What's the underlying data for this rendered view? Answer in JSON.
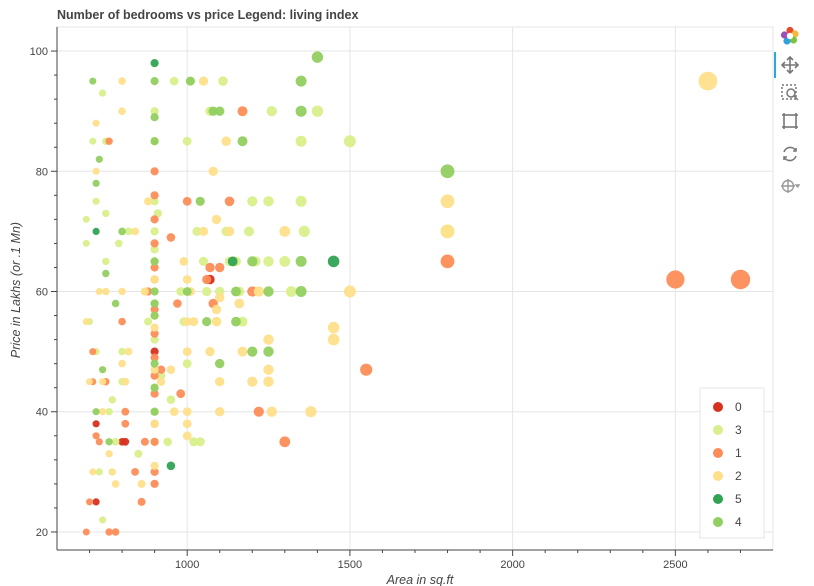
{
  "chart_data": {
    "type": "scatter",
    "title": "Number of bedrooms vs price  Legend: living index",
    "xlabel": "Area in sq.ft",
    "ylabel": "Price in Lakhs (or .1 Mn)",
    "xlim": [
      600,
      2800
    ],
    "ylim": [
      17,
      104
    ],
    "xticks": [
      1000,
      1500,
      2000,
      2500
    ],
    "yticks": [
      20,
      40,
      60,
      80,
      100
    ],
    "grid": true,
    "legend_placement": "bottom-right",
    "series": [
      {
        "name": "0",
        "color": "#d7301f",
        "points": [
          [
            720,
            25
          ],
          [
            800,
            35
          ],
          [
            810,
            35
          ],
          [
            900,
            50
          ],
          [
            1070,
            62
          ],
          [
            720,
            38
          ]
        ]
      },
      {
        "name": "3",
        "color": "#d9ef8b",
        "points": [
          [
            690,
            72
          ],
          [
            690,
            68
          ],
          [
            700,
            55
          ],
          [
            710,
            85
          ],
          [
            720,
            75
          ],
          [
            720,
            50
          ],
          [
            730,
            30
          ],
          [
            740,
            22
          ],
          [
            740,
            93
          ],
          [
            750,
            85
          ],
          [
            750,
            73
          ],
          [
            750,
            65
          ],
          [
            760,
            40
          ],
          [
            770,
            42
          ],
          [
            780,
            35
          ],
          [
            790,
            68
          ],
          [
            800,
            50
          ],
          [
            800,
            45
          ],
          [
            820,
            70
          ],
          [
            850,
            33
          ],
          [
            870,
            60
          ],
          [
            880,
            55
          ],
          [
            900,
            75
          ],
          [
            900,
            70
          ],
          [
            900,
            67
          ],
          [
            900,
            58
          ],
          [
            900,
            52
          ],
          [
            900,
            40
          ],
          [
            900,
            35
          ],
          [
            900,
            90
          ],
          [
            910,
            73
          ],
          [
            920,
            46
          ],
          [
            940,
            35
          ],
          [
            950,
            42
          ],
          [
            960,
            95
          ],
          [
            980,
            60
          ],
          [
            990,
            55
          ],
          [
            1000,
            48
          ],
          [
            1000,
            85
          ],
          [
            1010,
            95
          ],
          [
            1020,
            35
          ],
          [
            1030,
            70
          ],
          [
            1040,
            35
          ],
          [
            1050,
            65
          ],
          [
            1060,
            60
          ],
          [
            1070,
            90
          ],
          [
            1090,
            55
          ],
          [
            1100,
            60
          ],
          [
            1110,
            95
          ],
          [
            1120,
            70
          ],
          [
            1130,
            65
          ],
          [
            1150,
            65
          ],
          [
            1160,
            60
          ],
          [
            1170,
            55
          ],
          [
            1190,
            70
          ],
          [
            1200,
            75
          ],
          [
            1210,
            65
          ],
          [
            1220,
            60
          ],
          [
            1250,
            75
          ],
          [
            1250,
            65
          ],
          [
            1260,
            90
          ],
          [
            1300,
            65
          ],
          [
            1320,
            60
          ],
          [
            1350,
            85
          ],
          [
            1350,
            75
          ],
          [
            1360,
            70
          ],
          [
            1400,
            90
          ],
          [
            1500,
            85
          ],
          [
            1800,
            70
          ]
        ]
      },
      {
        "name": "1",
        "color": "#fc8d59",
        "points": [
          [
            690,
            20
          ],
          [
            700,
            25
          ],
          [
            710,
            50
          ],
          [
            710,
            45
          ],
          [
            720,
            36
          ],
          [
            730,
            35
          ],
          [
            750,
            45
          ],
          [
            760,
            85
          ],
          [
            760,
            20
          ],
          [
            780,
            20
          ],
          [
            800,
            55
          ],
          [
            810,
            38
          ],
          [
            810,
            40
          ],
          [
            840,
            30
          ],
          [
            860,
            25
          ],
          [
            870,
            35
          ],
          [
            880,
            60
          ],
          [
            900,
            80
          ],
          [
            900,
            76
          ],
          [
            900,
            72
          ],
          [
            900,
            68
          ],
          [
            900,
            64
          ],
          [
            900,
            62
          ],
          [
            900,
            57
          ],
          [
            900,
            53
          ],
          [
            900,
            49
          ],
          [
            900,
            46
          ],
          [
            900,
            43
          ],
          [
            900,
            38
          ],
          [
            900,
            35
          ],
          [
            900,
            28
          ],
          [
            920,
            47
          ],
          [
            950,
            69
          ],
          [
            970,
            58
          ],
          [
            980,
            43
          ],
          [
            1000,
            75
          ],
          [
            1060,
            62
          ],
          [
            1070,
            64
          ],
          [
            1080,
            58
          ],
          [
            1100,
            64
          ],
          [
            1130,
            75
          ],
          [
            1170,
            90
          ],
          [
            1200,
            60
          ],
          [
            1220,
            40
          ],
          [
            1300,
            35
          ],
          [
            1550,
            47
          ],
          [
            1800,
            65
          ],
          [
            2500,
            62
          ],
          [
            2700,
            62
          ],
          [
            900,
            30
          ]
        ]
      },
      {
        "name": "2",
        "color": "#fee08b",
        "points": [
          [
            690,
            55
          ],
          [
            700,
            45
          ],
          [
            710,
            30
          ],
          [
            720,
            88
          ],
          [
            720,
            80
          ],
          [
            730,
            60
          ],
          [
            740,
            40
          ],
          [
            740,
            45
          ],
          [
            750,
            60
          ],
          [
            760,
            33
          ],
          [
            770,
            30
          ],
          [
            780,
            28
          ],
          [
            800,
            95
          ],
          [
            800,
            90
          ],
          [
            800,
            60
          ],
          [
            800,
            48
          ],
          [
            810,
            45
          ],
          [
            820,
            50
          ],
          [
            840,
            70
          ],
          [
            860,
            28
          ],
          [
            870,
            60
          ],
          [
            880,
            75
          ],
          [
            900,
            85
          ],
          [
            900,
            65
          ],
          [
            900,
            62
          ],
          [
            900,
            56
          ],
          [
            900,
            54
          ],
          [
            900,
            47
          ],
          [
            900,
            44
          ],
          [
            900,
            38
          ],
          [
            900,
            31
          ],
          [
            920,
            45
          ],
          [
            950,
            47
          ],
          [
            960,
            40
          ],
          [
            990,
            65
          ],
          [
            1000,
            62
          ],
          [
            1000,
            40
          ],
          [
            1000,
            38
          ],
          [
            1000,
            36
          ],
          [
            1000,
            55
          ],
          [
            1010,
            60
          ],
          [
            1020,
            55
          ],
          [
            1050,
            70
          ],
          [
            1070,
            50
          ],
          [
            1080,
            80
          ],
          [
            1090,
            72
          ],
          [
            1090,
            57
          ],
          [
            1090,
            55
          ],
          [
            1100,
            59
          ],
          [
            1100,
            45
          ],
          [
            1100,
            40
          ],
          [
            1120,
            85
          ],
          [
            1130,
            70
          ],
          [
            1140,
            65
          ],
          [
            1150,
            60
          ],
          [
            1160,
            58
          ],
          [
            1170,
            50
          ],
          [
            1200,
            45
          ],
          [
            1220,
            60
          ],
          [
            1250,
            52
          ],
          [
            1250,
            47
          ],
          [
            1250,
            45
          ],
          [
            1260,
            40
          ],
          [
            1300,
            70
          ],
          [
            1380,
            40
          ],
          [
            1450,
            54
          ],
          [
            1450,
            52
          ],
          [
            1500,
            60
          ],
          [
            1800,
            75
          ],
          [
            1800,
            70
          ],
          [
            2600,
            95
          ],
          [
            1000,
            50
          ],
          [
            1050,
            95
          ]
        ]
      },
      {
        "name": "5",
        "color": "#31a354",
        "points": [
          [
            720,
            70
          ],
          [
            900,
            98
          ],
          [
            950,
            31
          ],
          [
            1140,
            65
          ],
          [
            1450,
            65
          ]
        ]
      },
      {
        "name": "4",
        "color": "#91cf60",
        "points": [
          [
            710,
            95
          ],
          [
            720,
            40
          ],
          [
            720,
            78
          ],
          [
            730,
            82
          ],
          [
            740,
            47
          ],
          [
            750,
            63
          ],
          [
            760,
            35
          ],
          [
            780,
            58
          ],
          [
            800,
            70
          ],
          [
            900,
            95
          ],
          [
            900,
            85
          ],
          [
            900,
            65
          ],
          [
            900,
            60
          ],
          [
            900,
            58
          ],
          [
            900,
            56
          ],
          [
            900,
            48
          ],
          [
            900,
            44
          ],
          [
            900,
            40
          ],
          [
            900,
            89
          ],
          [
            1000,
            60
          ],
          [
            1010,
            95
          ],
          [
            1040,
            75
          ],
          [
            1060,
            55
          ],
          [
            1080,
            90
          ],
          [
            1100,
            90
          ],
          [
            1100,
            48
          ],
          [
            1170,
            85
          ],
          [
            1200,
            50
          ],
          [
            1200,
            65
          ],
          [
            1250,
            60
          ],
          [
            1250,
            50
          ],
          [
            1350,
            95
          ],
          [
            1350,
            90
          ],
          [
            1350,
            65
          ],
          [
            1350,
            60
          ],
          [
            1400,
            99
          ],
          [
            1800,
            80
          ],
          [
            1150,
            55
          ],
          [
            1150,
            60
          ]
        ]
      }
    ]
  },
  "toolbar": {
    "logo_icon": "bokeh-logo-icon",
    "tools": [
      "pan-icon",
      "box-zoom-icon",
      "box-select-icon",
      "reset-icon",
      "hover-icon"
    ]
  }
}
